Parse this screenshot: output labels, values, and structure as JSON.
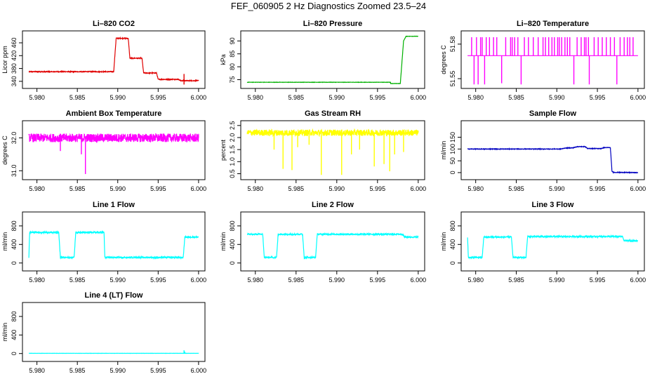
{
  "page_title": "FEF_060905  2 Hz Diagnostics Zoomed 23.5–24",
  "chart_data": [
    {
      "type": "line",
      "title": "Li–820 CO2",
      "ylabel": "Licor ppm",
      "color": "#e00000",
      "xlim": [
        5.979,
        6.0
      ],
      "ylim": [
        325,
        490
      ],
      "xticks": [
        5.98,
        5.985,
        5.99,
        5.995,
        6.0
      ],
      "xtick_labels": [
        "5.980",
        "5.985",
        "5.990",
        "5.995",
        "6.000"
      ],
      "yticks": [
        340,
        380,
        420,
        460
      ],
      "ytick_labels": [
        "340",
        "380",
        "420",
        "460"
      ],
      "noise": 1.2,
      "segments": [
        [
          5.979,
          370
        ],
        [
          5.9895,
          370
        ],
        [
          5.9898,
          474
        ],
        [
          5.9913,
          474
        ],
        [
          5.9915,
          412
        ],
        [
          5.993,
          412
        ],
        [
          5.9932,
          366
        ],
        [
          5.9948,
          366
        ],
        [
          5.995,
          346
        ],
        [
          5.9975,
          346
        ],
        [
          5.9978,
          342
        ],
        [
          6.0,
          342
        ]
      ],
      "spikes": [
        [
          5.9982,
          330
        ],
        [
          5.9982,
          363
        ]
      ]
    },
    {
      "type": "line",
      "title": "Li–820 Pressure",
      "ylabel": "kPa",
      "color": "#00b000",
      "xlim": [
        5.979,
        6.0
      ],
      "ylim": [
        72.5,
        93
      ],
      "xticks": [
        5.98,
        5.985,
        5.99,
        5.995,
        6.0
      ],
      "xtick_labels": [
        "5.980",
        "5.985",
        "5.990",
        "5.995",
        "6.000"
      ],
      "yticks": [
        75,
        80,
        85,
        90
      ],
      "ytick_labels": [
        "75",
        "80",
        "85",
        "90"
      ],
      "noise": 0.05,
      "segments": [
        [
          5.979,
          74
        ],
        [
          5.9966,
          74
        ],
        [
          5.9966,
          73.5
        ],
        [
          5.9978,
          73.5
        ],
        [
          5.9982,
          90
        ],
        [
          5.9985,
          91.8
        ],
        [
          6.0,
          91.8
        ]
      ],
      "spikes": []
    },
    {
      "type": "line",
      "title": "Li–820 Temperature",
      "ylabel": "degrees C",
      "color": "#ff00ff",
      "xlim": [
        5.979,
        6.0
      ],
      "ylim": [
        51.5435,
        51.5895
      ],
      "xticks": [
        5.98,
        5.985,
        5.99,
        5.995,
        6.0
      ],
      "xtick_labels": [
        "5.980",
        "5.985",
        "5.990",
        "5.995",
        "6.000"
      ],
      "yticks": [
        51.55,
        51.58
      ],
      "ytick_labels": [
        "51.55",
        "51.58"
      ],
      "noise": 0,
      "segments": [
        [
          5.979,
          51.57
        ],
        [
          6.0,
          51.57
        ]
      ],
      "spikes": [
        [
          5.9795,
          51.586
        ],
        [
          5.9798,
          51.545
        ],
        [
          5.9801,
          51.586
        ],
        [
          5.9803,
          51.545
        ],
        [
          5.9806,
          51.586
        ],
        [
          5.9808,
          51.586
        ],
        [
          5.9811,
          51.545
        ],
        [
          5.9813,
          51.586
        ],
        [
          5.9817,
          51.586
        ],
        [
          5.9822,
          51.586
        ],
        [
          5.9826,
          51.586
        ],
        [
          5.9832,
          51.546
        ],
        [
          5.9837,
          51.586
        ],
        [
          5.9843,
          51.586
        ],
        [
          5.9845,
          51.586
        ],
        [
          5.9848,
          51.586
        ],
        [
          5.9852,
          51.586
        ],
        [
          5.9856,
          51.545
        ],
        [
          5.986,
          51.586
        ],
        [
          5.9865,
          51.586
        ],
        [
          5.9871,
          51.586
        ],
        [
          5.9877,
          51.586
        ],
        [
          5.9883,
          51.586
        ],
        [
          5.9886,
          51.586
        ],
        [
          5.989,
          51.586
        ],
        [
          5.9894,
          51.586
        ],
        [
          5.9897,
          51.586
        ],
        [
          5.9901,
          51.586
        ],
        [
          5.9903,
          51.586
        ],
        [
          5.9906,
          51.586
        ],
        [
          5.991,
          51.586
        ],
        [
          5.9913,
          51.586
        ],
        [
          5.9916,
          51.586
        ],
        [
          5.9921,
          51.545
        ],
        [
          5.9925,
          51.586
        ],
        [
          5.993,
          51.586
        ],
        [
          5.9934,
          51.586
        ],
        [
          5.9936,
          51.586
        ],
        [
          5.9939,
          51.586
        ],
        [
          5.994,
          51.545
        ],
        [
          5.9946,
          51.586
        ],
        [
          5.9951,
          51.586
        ],
        [
          5.9956,
          51.586
        ],
        [
          5.9961,
          51.586
        ],
        [
          5.9966,
          51.586
        ],
        [
          5.9971,
          51.586
        ],
        [
          5.9974,
          51.545
        ],
        [
          5.9978,
          51.586
        ],
        [
          5.9983,
          51.586
        ],
        [
          5.9987,
          51.586
        ],
        [
          5.999,
          51.586
        ],
        [
          5.9994,
          51.586
        ]
      ]
    },
    {
      "type": "line",
      "title": "Ambient Box Temperature",
      "ylabel": "degrees C",
      "color": "#ff00ff",
      "xlim": [
        5.979,
        6.0
      ],
      "ylim": [
        30.8,
        32.45
      ],
      "xticks": [
        5.98,
        5.985,
        5.99,
        5.995,
        6.0
      ],
      "xtick_labels": [
        "5.980",
        "5.985",
        "5.990",
        "5.995",
        "6.000"
      ],
      "yticks": [
        31.0,
        32.0
      ],
      "ytick_labels": [
        "31.0",
        "32.0"
      ],
      "noise": 0.13,
      "segments": [
        [
          5.979,
          32.0
        ],
        [
          6.0,
          32.0
        ]
      ],
      "spikes": [
        [
          5.986,
          30.9
        ],
        [
          5.9855,
          31.5
        ],
        [
          5.9829,
          31.6
        ]
      ]
    },
    {
      "type": "line",
      "title": "Gas Stream RH",
      "ylabel": "percent",
      "color": "#ffff00",
      "xlim": [
        5.979,
        6.0
      ],
      "ylim": [
        0.35,
        2.6
      ],
      "xticks": [
        5.98,
        5.985,
        5.99,
        5.995,
        6.0
      ],
      "xtick_labels": [
        "5.980",
        "5.985",
        "5.990",
        "5.995",
        "6.000"
      ],
      "yticks": [
        0.5,
        1.0,
        1.5,
        2.0,
        2.5
      ],
      "ytick_labels": [
        "0.5",
        "1.0",
        "1.5",
        "2.0",
        "2.5"
      ],
      "noise": 0.13,
      "segments": [
        [
          5.979,
          2.2
        ],
        [
          6.0,
          2.2
        ]
      ],
      "spikes": [
        [
          5.9823,
          1.5
        ],
        [
          5.9834,
          0.7
        ],
        [
          5.9845,
          0.65
        ],
        [
          5.9881,
          0.45
        ],
        [
          5.9906,
          0.45
        ],
        [
          5.9918,
          1.3
        ],
        [
          5.9928,
          1.5
        ],
        [
          5.9946,
          0.8
        ],
        [
          5.9958,
          0.9
        ],
        [
          5.9965,
          0.6
        ],
        [
          5.9971,
          1.3
        ],
        [
          5.9982,
          1.4
        ],
        [
          5.9866,
          1.7
        ],
        [
          5.9852,
          1.6
        ]
      ]
    },
    {
      "type": "line",
      "title": "Sample Flow",
      "ylabel": "ml/min",
      "color": "#0000c0",
      "xlim": [
        5.979,
        6.0
      ],
      "ylim": [
        -20,
        210
      ],
      "xticks": [
        5.98,
        5.985,
        5.99,
        5.995,
        6.0
      ],
      "xtick_labels": [
        "5.980",
        "5.985",
        "5.990",
        "5.995",
        "6.000"
      ],
      "yticks": [
        0,
        50,
        100,
        150
      ],
      "ytick_labels": [
        "0",
        "50",
        "100",
        "150"
      ],
      "noise": 1.2,
      "segments": [
        [
          5.979,
          100
        ],
        [
          5.9905,
          100
        ],
        [
          5.991,
          104
        ],
        [
          5.992,
          105
        ],
        [
          5.9925,
          110
        ],
        [
          5.9935,
          110
        ],
        [
          5.9938,
          102
        ],
        [
          5.9955,
          102
        ],
        [
          5.9958,
          106
        ],
        [
          5.9966,
          106
        ],
        [
          5.9968,
          5
        ],
        [
          5.997,
          1
        ],
        [
          6.0,
          0
        ]
      ],
      "spikes": []
    },
    {
      "type": "line",
      "title": "Line 1 Flow",
      "ylabel": "ml/min",
      "color": "#00ffff",
      "xlim": [
        5.979,
        6.0
      ],
      "ylim": [
        -120,
        1050
      ],
      "xticks": [
        5.98,
        5.985,
        5.99,
        5.995,
        6.0
      ],
      "xtick_labels": [
        "5.980",
        "5.985",
        "5.990",
        "5.995",
        "6.000"
      ],
      "yticks": [
        0,
        400,
        800
      ],
      "ytick_labels": [
        "0",
        "400",
        "800"
      ],
      "noise": 15,
      "segments": [
        [
          5.979,
          120
        ],
        [
          5.9791,
          660
        ],
        [
          5.9827,
          660
        ],
        [
          5.9829,
          120
        ],
        [
          5.9846,
          120
        ],
        [
          5.9848,
          660
        ],
        [
          5.9883,
          660
        ],
        [
          5.9884,
          120
        ],
        [
          5.9981,
          120
        ],
        [
          5.9983,
          560
        ],
        [
          6.0,
          560
        ]
      ],
      "spikes": []
    },
    {
      "type": "line",
      "title": "Line 2 Flow",
      "ylabel": "ml/min",
      "color": "#00ffff",
      "xlim": [
        5.979,
        6.0
      ],
      "ylim": [
        -120,
        1050
      ],
      "xticks": [
        5.98,
        5.985,
        5.99,
        5.995,
        6.0
      ],
      "xtick_labels": [
        "5.980",
        "5.985",
        "5.990",
        "5.995",
        "6.000"
      ],
      "yticks": [
        0,
        400,
        800
      ],
      "ytick_labels": [
        "0",
        "400",
        "800"
      ],
      "noise": 15,
      "segments": [
        [
          5.979,
          620
        ],
        [
          5.9809,
          620
        ],
        [
          5.9811,
          120
        ],
        [
          5.9826,
          120
        ],
        [
          5.9828,
          620
        ],
        [
          5.9858,
          620
        ],
        [
          5.986,
          120
        ],
        [
          5.9874,
          120
        ],
        [
          5.9876,
          620
        ],
        [
          5.9981,
          620
        ],
        [
          5.9983,
          560
        ],
        [
          6.0,
          560
        ]
      ],
      "spikes": []
    },
    {
      "type": "line",
      "title": "Line 3 Flow",
      "ylabel": "ml/min",
      "color": "#00ffff",
      "xlim": [
        5.979,
        6.0
      ],
      "ylim": [
        -120,
        1050
      ],
      "xticks": [
        5.98,
        5.985,
        5.99,
        5.995,
        6.0
      ],
      "xtick_labels": [
        "5.980",
        "5.985",
        "5.990",
        "5.995",
        "6.000"
      ],
      "yticks": [
        0,
        400,
        800
      ],
      "ytick_labels": [
        "0",
        "400",
        "800"
      ],
      "noise": 15,
      "segments": [
        [
          5.979,
          540
        ],
        [
          5.9791,
          120
        ],
        [
          5.9808,
          120
        ],
        [
          5.981,
          560
        ],
        [
          5.9844,
          560
        ],
        [
          5.9846,
          120
        ],
        [
          5.9862,
          120
        ],
        [
          5.9864,
          570
        ],
        [
          5.9981,
          570
        ],
        [
          5.9983,
          480
        ],
        [
          6.0,
          480
        ]
      ],
      "spikes": []
    },
    {
      "type": "line",
      "title": "Line 4 (LT) Flow",
      "ylabel": "ml/min",
      "color": "#00ffff",
      "xlim": [
        5.979,
        6.0
      ],
      "ylim": [
        -120,
        1050
      ],
      "xticks": [
        5.98,
        5.985,
        5.99,
        5.995,
        6.0
      ],
      "xtick_labels": [
        "5.980",
        "5.985",
        "5.990",
        "5.995",
        "6.000"
      ],
      "yticks": [
        0,
        400,
        800
      ],
      "ytick_labels": [
        "0",
        "400",
        "800"
      ],
      "noise": 2,
      "segments": [
        [
          5.979,
          5
        ],
        [
          6.0,
          5
        ]
      ],
      "spikes": [
        [
          5.9982,
          70
        ],
        [
          5.9983,
          40
        ]
      ]
    }
  ]
}
